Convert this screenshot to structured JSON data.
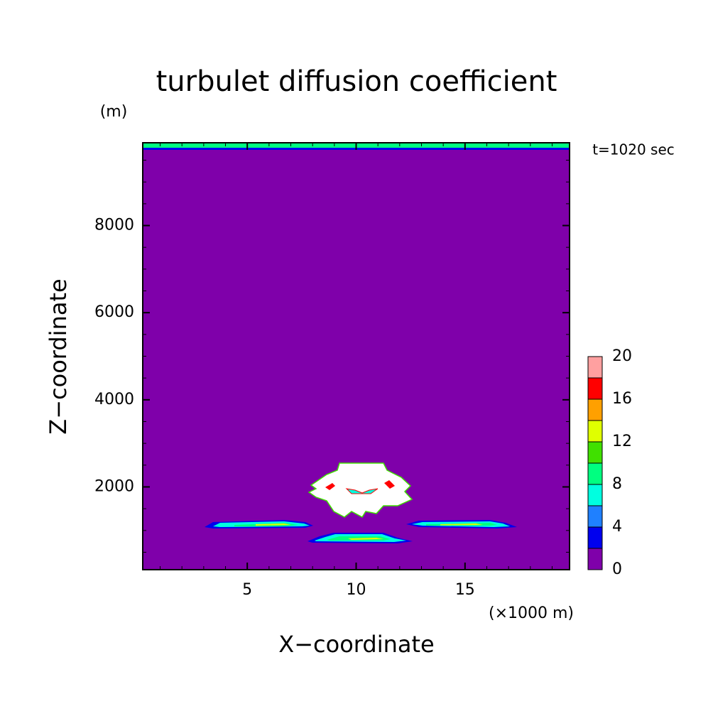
{
  "chart_data": {
    "type": "contour",
    "title": "turbulet diffusion coefficient",
    "y_unit": "(m)",
    "time_label": "t=1020 sec",
    "x_unit": "(×1000 m)",
    "xlabel": "X−coordinate",
    "ylabel": "Z−coordinate",
    "xlim": [
      0.2,
      19.8
    ],
    "xticks": [
      5,
      10,
      15
    ],
    "xminorticks": [
      1,
      2,
      3,
      4,
      5,
      6,
      7,
      8,
      9,
      10,
      11,
      12,
      13,
      14,
      15,
      16,
      17,
      18,
      19
    ],
    "ylim": [
      100,
      9900
    ],
    "yticks": [
      2000,
      4000,
      6000,
      8000
    ],
    "yminorticks": [
      500,
      1000,
      1500,
      2000,
      2500,
      3000,
      3500,
      4000,
      4500,
      5000,
      5500,
      6000,
      6500,
      7000,
      7500,
      8000,
      8500,
      9000,
      9500
    ],
    "colorbar": {
      "levels": [
        0,
        2,
        4,
        6,
        8,
        10,
        12,
        14,
        16,
        18,
        20
      ],
      "colors": [
        "#7f00aa",
        "#0000ee",
        "#1f80ff",
        "#00ffe0",
        "#00ff80",
        "#40e000",
        "#e0ff00",
        "#ffa000",
        "#ff0000",
        "#ffa0a0"
      ],
      "ticks": [
        0,
        4,
        8,
        12,
        16,
        20
      ]
    }
  }
}
